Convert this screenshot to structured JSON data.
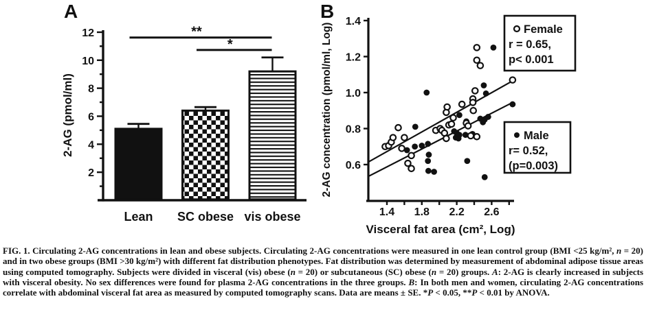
{
  "colors": {
    "ink": "#111111",
    "background": "#ffffff"
  },
  "chart_data": [
    {
      "type": "bar",
      "panel": "A",
      "ylabel": "2-AG (pmol/ml)",
      "ylim": [
        0,
        12
      ],
      "yticks": [
        2,
        4,
        6,
        8,
        10,
        12
      ],
      "categories": [
        "Lean",
        "SC obese",
        "vis obese"
      ],
      "values": [
        5.1,
        6.4,
        9.2
      ],
      "errors_se": [
        0.35,
        0.25,
        1.0
      ],
      "bar_patterns": [
        "solid-black",
        "checkerboard",
        "horizontal-stripes"
      ],
      "significance": [
        {
          "label": "**",
          "from": 0,
          "to": 2,
          "y": 11.62
        },
        {
          "label": "*",
          "from": 1,
          "to": 2,
          "y": 10.73
        }
      ]
    },
    {
      "type": "scatter",
      "panel": "B",
      "xlabel": "Visceral fat area (cm², Log)",
      "ylabel": "2-AG concentration (pmol/ml, Log)",
      "xlim": [
        1.15,
        2.9
      ],
      "ylim": [
        0.4,
        1.45
      ],
      "xticks_labeled": [
        1.4,
        1.8,
        2.2,
        2.6
      ],
      "xticks_minor": [
        1.4,
        1.6,
        1.8,
        2.0,
        2.2,
        2.4,
        2.6,
        2.8
      ],
      "yticks": [
        0.6,
        0.8,
        1.0,
        1.2,
        1.4
      ],
      "series": [
        {
          "name": "Female",
          "marker": "open-circle",
          "r_text": "r = 0.65,",
          "p_text": "p< 0.001",
          "trend": [
            [
              1.19,
              0.615
            ],
            [
              2.84,
              1.065
            ]
          ],
          "points": [
            [
              1.38,
              0.7
            ],
            [
              1.42,
              0.705
            ],
            [
              1.45,
              0.725
            ],
            [
              1.47,
              0.75
            ],
            [
              1.53,
              0.805
            ],
            [
              1.57,
              0.69
            ],
            [
              1.6,
              0.75
            ],
            [
              1.64,
              0.607
            ],
            [
              1.68,
              0.65
            ],
            [
              1.68,
              0.578
            ],
            [
              1.96,
              0.79
            ],
            [
              2.01,
              0.8
            ],
            [
              2.03,
              0.79
            ],
            [
              2.06,
              0.775
            ],
            [
              2.08,
              0.745
            ],
            [
              2.08,
              0.89
            ],
            [
              2.09,
              0.92
            ],
            [
              2.11,
              0.82
            ],
            [
              2.14,
              0.825
            ],
            [
              2.16,
              0.86
            ],
            [
              2.26,
              0.935
            ],
            [
              2.31,
              0.83
            ],
            [
              2.33,
              0.815
            ],
            [
              2.36,
              0.76
            ],
            [
              2.385,
              0.965
            ],
            [
              2.385,
              0.945
            ],
            [
              2.39,
              0.9
            ],
            [
              2.41,
              1.01
            ],
            [
              2.43,
              0.755
            ],
            [
              2.43,
              1.18
            ],
            [
              2.43,
              1.25
            ],
            [
              2.47,
              1.15
            ],
            [
              2.84,
              1.07
            ]
          ]
        },
        {
          "name": "Male",
          "marker": "filled-circle",
          "r_text": "r= 0.52,",
          "p_text": "(p=0.003)",
          "trend": [
            [
              1.19,
              0.535
            ],
            [
              2.84,
              0.945
            ]
          ],
          "points": [
            [
              1.63,
              0.68
            ],
            [
              1.72,
              0.7
            ],
            [
              1.725,
              0.81
            ],
            [
              1.8,
              0.705
            ],
            [
              1.855,
              1.0
            ],
            [
              1.87,
              0.715
            ],
            [
              1.87,
              0.62
            ],
            [
              1.875,
              0.565
            ],
            [
              1.88,
              0.655
            ],
            [
              1.94,
              0.56
            ],
            [
              2.17,
              0.785
            ],
            [
              2.19,
              0.75
            ],
            [
              2.2,
              0.775
            ],
            [
              2.22,
              0.745
            ],
            [
              2.23,
              0.765
            ],
            [
              2.23,
              0.875
            ],
            [
              2.3,
              0.765
            ],
            [
              2.31,
              0.84
            ],
            [
              2.32,
              0.62
            ],
            [
              2.38,
              0.77
            ],
            [
              2.47,
              0.855
            ],
            [
              2.5,
              0.835
            ],
            [
              2.52,
              0.85
            ],
            [
              2.52,
              0.53
            ],
            [
              2.51,
              1.04
            ],
            [
              2.535,
              0.995
            ],
            [
              2.56,
              0.865
            ],
            [
              2.62,
              1.25
            ],
            [
              2.84,
              0.935
            ]
          ]
        }
      ],
      "legend": [
        {
          "marker": "open-circle",
          "lines": [
            "Female",
            "r = 0.65,",
            "p< 0.001"
          ]
        },
        {
          "marker": "filled-circle",
          "lines": [
            "Male",
            "r= 0.52,",
            "(p=0.003)"
          ]
        }
      ]
    }
  ],
  "caption": {
    "segments": [
      {
        "text": "FIG. 1. Circulating 2-AG concentrations in lean and obese subjects. Circulating 2-AG concentrations were measured in one lean control group (BMI <25 kg/m², ",
        "italic": false
      },
      {
        "text": "n",
        "italic": true
      },
      {
        "text": " = 20) and in two obese groups (BMI >30 kg/m²) with different fat distribution phenotypes. Fat distribution was determined by measurement of abdominal adipose tissue areas using computed tomography. Subjects were divided in visceral (vis) obese (",
        "italic": false
      },
      {
        "text": "n",
        "italic": true
      },
      {
        "text": " = 20) or subcutaneous (SC) obese (",
        "italic": false
      },
      {
        "text": "n",
        "italic": true
      },
      {
        "text": " = 20) groups. ",
        "italic": false
      },
      {
        "text": "A",
        "italic": true
      },
      {
        "text": ": 2-AG is clearly increased in subjects with visceral obesity. No sex differences were found for plasma 2-AG concentrations in the three groups. ",
        "italic": false
      },
      {
        "text": "B",
        "italic": true
      },
      {
        "text": ": In both men and women, circulating 2-AG concentrations correlate with abdominal visceral fat area as measured by computed tomography scans. Data are means ± SE. *",
        "italic": false
      },
      {
        "text": "P",
        "italic": true
      },
      {
        "text": " < 0.05, **",
        "italic": false
      },
      {
        "text": "P",
        "italic": true
      },
      {
        "text": " < 0.01 by ANOVA.",
        "italic": false
      }
    ]
  }
}
